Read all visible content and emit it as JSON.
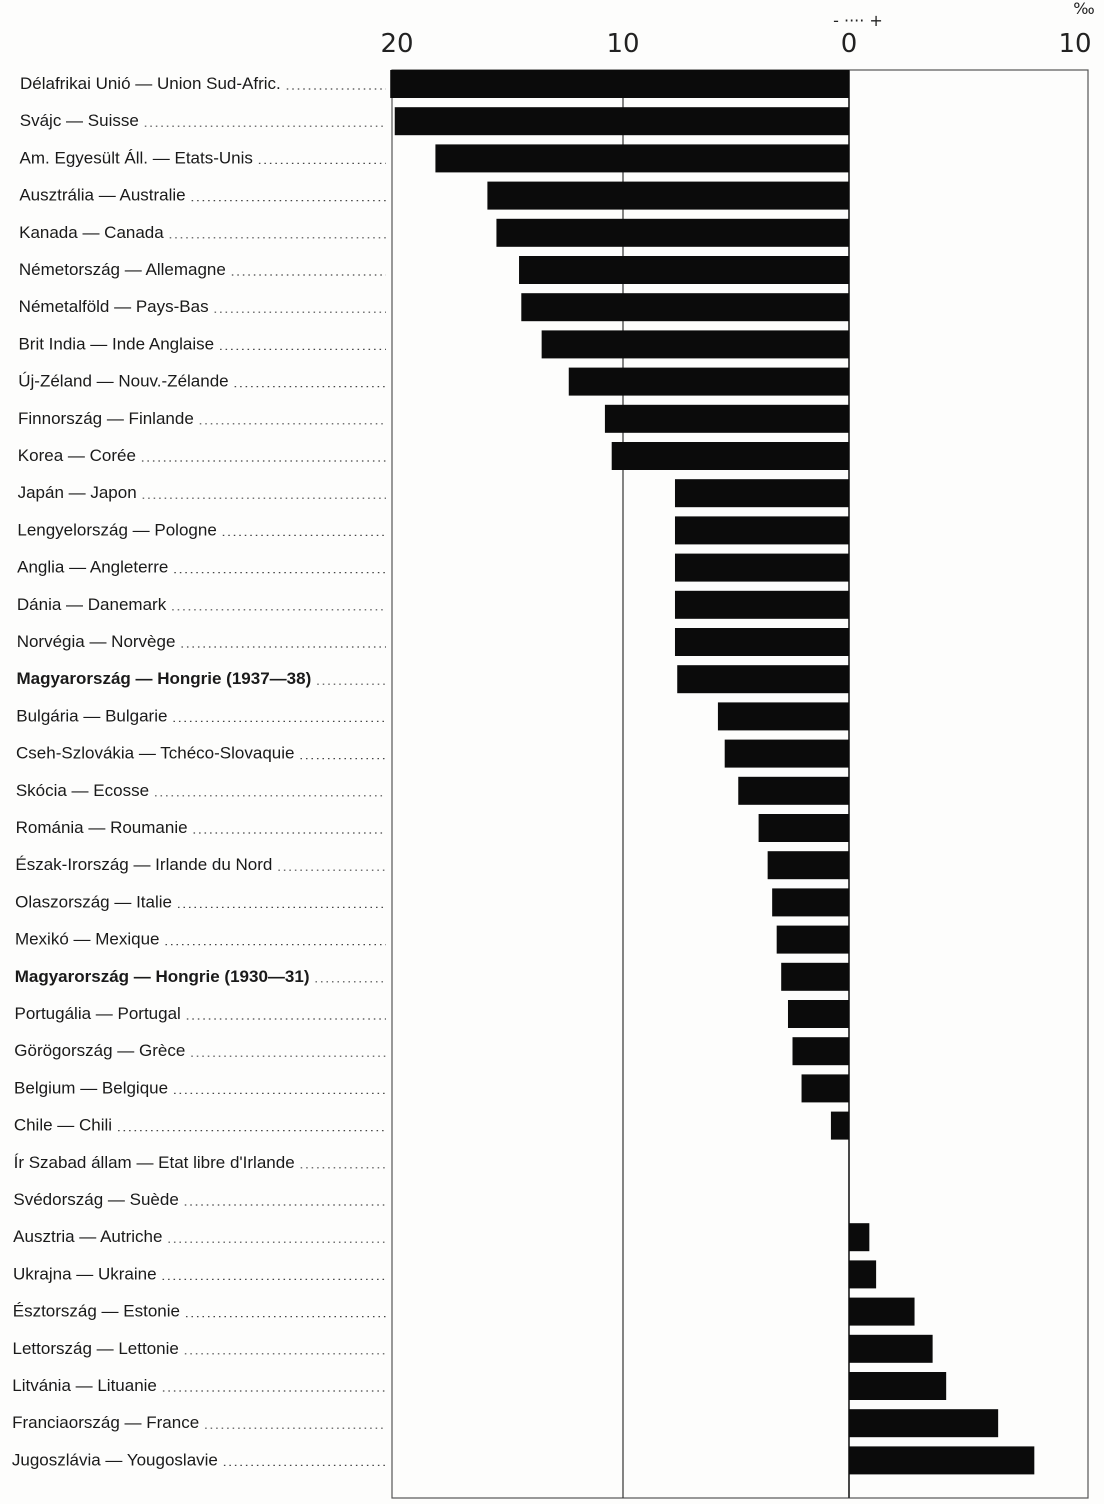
{
  "chart_data": {
    "type": "bar",
    "orientation": "horizontal",
    "unit": "‰",
    "sign_legend": "- ···· +",
    "x_ticks": [
      "20",
      "10",
      "0",
      "10"
    ],
    "xlim": [
      -20,
      10
    ],
    "grid": true,
    "categories": [
      "Délafrikai Unió — Union Sud-Afric.",
      "Svájc — Suisse",
      "Am. Egyesült Áll. — Etats-Unis",
      "Ausztrália — Australie",
      "Kanada — Canada",
      "Németország — Allemagne",
      "Németalföld — Pays-Bas",
      "Brit India — Inde Anglaise",
      "Új-Zéland — Nouv.-Zélande",
      "Finnország — Finlande",
      "Korea — Corée",
      "Japán — Japon",
      "Lengyelország — Pologne",
      "Anglia — Angleterre",
      "Dánia — Danemark",
      "Norvégia — Norvège",
      "Magyarország — Hongrie (1937—38)",
      "Bulgária — Bulgarie",
      "Cseh-Szlovákia — Tchéco-Slovaquie",
      "Skócia — Ecosse",
      "Románia — Roumanie",
      "Észak-Irország — Irlande du Nord",
      "Olaszország — Italie",
      "Mexikó — Mexique",
      "Magyarország — Hongrie (1930—31)",
      "Portugália — Portugal",
      "Görögország — Grèce",
      "Belgium — Belgique",
      "Chile — Chili",
      "Ír Szabad állam — Etat libre d'Irlande",
      "Svédország — Suède",
      "Ausztria — Autriche",
      "Ukrajna — Ukraine",
      "Észtország — Estonie",
      "Lettország — Lettonie",
      "Litvánia — Lituanie",
      "Franciaország — France",
      "Jugoszlávia — Yougoslavie"
    ],
    "bold_categories": [
      16,
      24
    ],
    "values": [
      -20.3,
      -20.1,
      -18.3,
      -16.0,
      -15.6,
      -14.6,
      -14.5,
      -13.6,
      -12.4,
      -10.8,
      -10.5,
      -7.7,
      -7.7,
      -7.7,
      -7.7,
      -7.7,
      -7.6,
      -5.8,
      -5.5,
      -4.9,
      -4.0,
      -3.6,
      -3.4,
      -3.2,
      -3.0,
      -2.7,
      -2.5,
      -2.1,
      -0.8,
      0.0,
      0.0,
      0.9,
      1.2,
      2.9,
      3.7,
      4.3,
      6.6,
      8.2
    ]
  }
}
